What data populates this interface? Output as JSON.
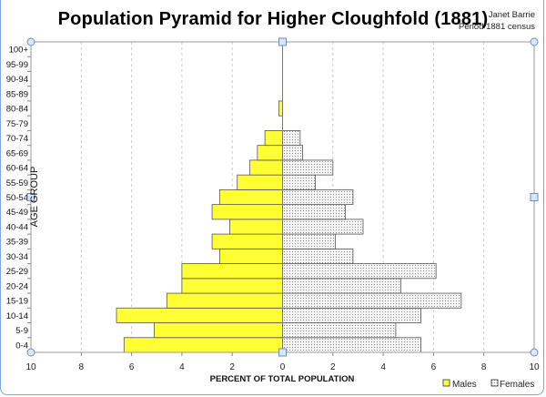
{
  "chart_data": {
    "type": "bar",
    "orientation": "horizontal-pyramid",
    "title": "Population Pyramid for Higher Cloughfold  (1881)",
    "annotation": [
      "Janet Barrie",
      "Period 1881 census"
    ],
    "xlabel": "PERCENT OF TOTAL POPULATION",
    "ylabel": "AGE GROUP",
    "xlim": [
      -10,
      10
    ],
    "x_ticks": [
      "10",
      "8",
      "6",
      "4",
      "2",
      "0",
      "2",
      "4",
      "6",
      "8",
      "10"
    ],
    "grid": "vertical dashed",
    "legend_position": "bottom-right",
    "categories": [
      "0-4",
      "5-9",
      "10-14",
      "15-19",
      "20-24",
      "25-29",
      "30-34",
      "35-39",
      "40-44",
      "45-49",
      "50-54",
      "55-59",
      "60-64",
      "65-69",
      "70-74",
      "75-79",
      "80-84",
      "85-89",
      "90-94",
      "95-99",
      "100+"
    ],
    "series": [
      {
        "name": "Males",
        "color": "#ffff33",
        "values": [
          6.3,
          5.1,
          6.6,
          4.6,
          4.0,
          4.0,
          2.5,
          2.8,
          2.1,
          2.8,
          2.5,
          1.8,
          1.3,
          1.0,
          0.7,
          0,
          0.15,
          0,
          0,
          0,
          0
        ]
      },
      {
        "name": "Females",
        "color": "#e8e8e8",
        "values": [
          5.5,
          4.5,
          5.5,
          7.1,
          4.7,
          6.1,
          2.8,
          2.1,
          3.2,
          2.5,
          2.8,
          1.3,
          2.0,
          0.8,
          0.7,
          0,
          0,
          0,
          0,
          0,
          0
        ]
      }
    ]
  }
}
